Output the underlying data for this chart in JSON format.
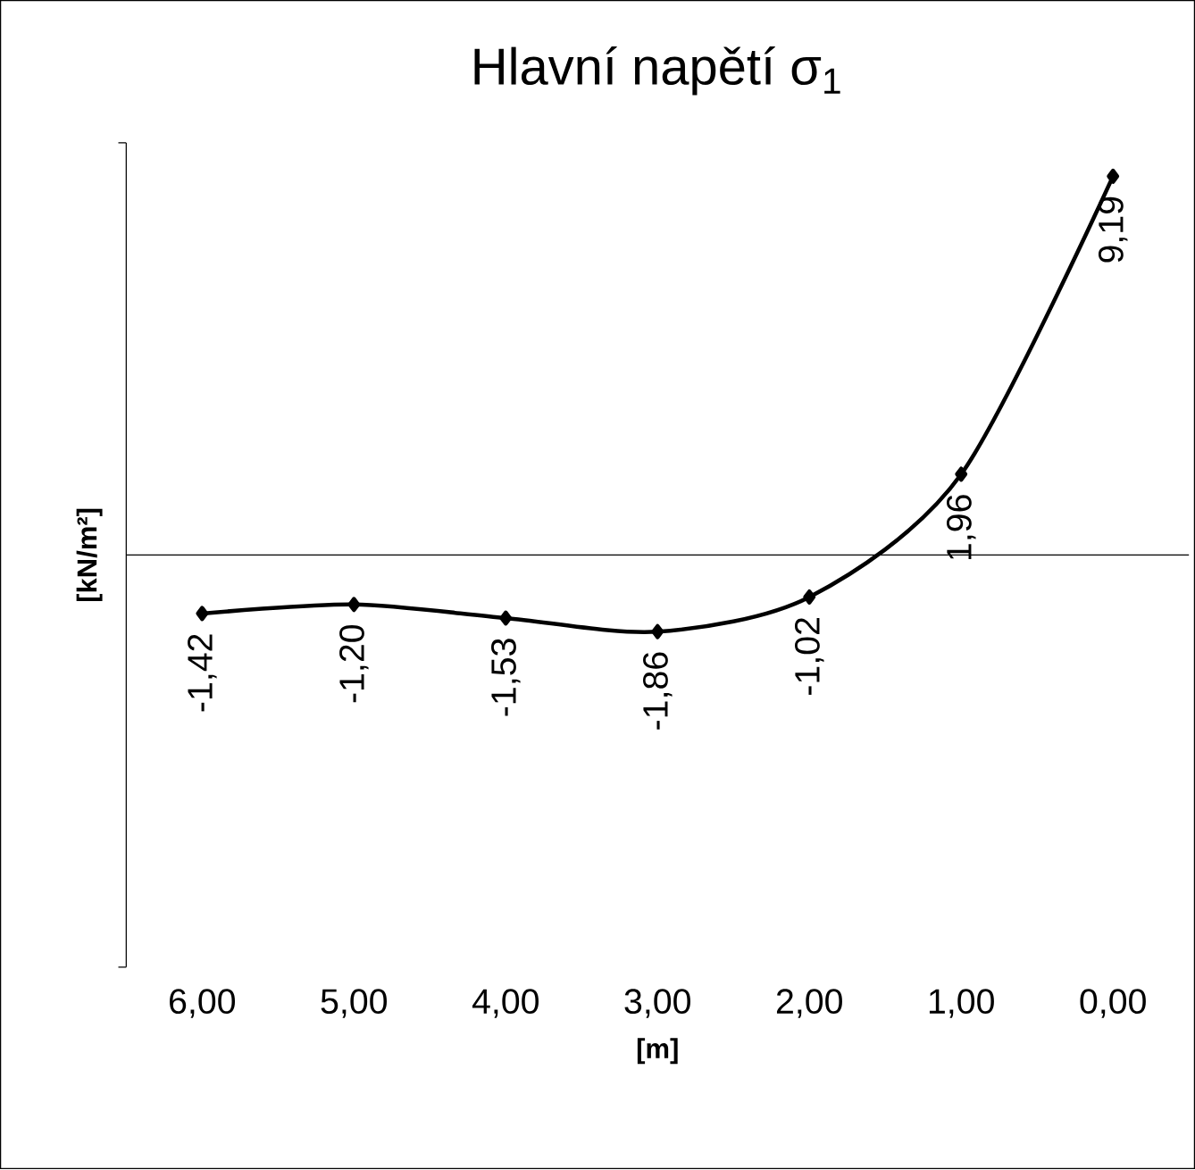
{
  "chart_data": {
    "type": "line",
    "title": "Hlavní napětí σ$_{1}$",
    "xlabel": "[m]",
    "ylabel": "[kN/m²]",
    "categories": [
      "6,00",
      "5,00",
      "4,00",
      "3,00",
      "2,00",
      "1,00",
      "0,00"
    ],
    "series": [
      {
        "color": "#000000",
        "values": [
          -1.42,
          -1.2,
          -1.53,
          -1.86,
          -1.02,
          1.96,
          9.19
        ],
        "value_labels": [
          "-1,42",
          "-1,20",
          "-1,53",
          "-1,86",
          "-1,02",
          "1,96",
          "9,19"
        ]
      }
    ],
    "ylim": [
      -10,
      10
    ],
    "tick_labels": "x",
    "marker": "diamond",
    "line_style": "solid",
    "grid": false
  }
}
